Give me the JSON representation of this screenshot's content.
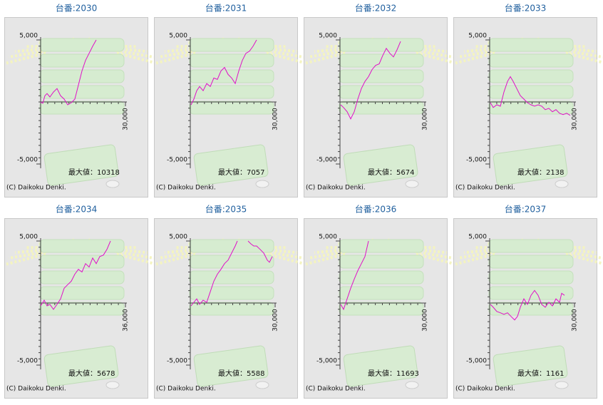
{
  "chart_data": [
    {
      "type": "line",
      "title": "台番:2030",
      "color": "#e010c8",
      "xlim": [
        0,
        30000
      ],
      "ylim": [
        -5000,
        5000
      ],
      "xticks": [
        {
          "value": 30000,
          "label": "30,000"
        }
      ],
      "yticks": [
        {
          "value": -5000,
          "label": "-5,000"
        },
        {
          "value": 5000,
          "label": "5,000"
        }
      ],
      "x": [
        0,
        756,
        1512,
        2268,
        3276,
        4536,
        5796,
        7056,
        8316,
        9576,
        10836,
        12096,
        13356,
        14616,
        15876,
        17136,
        18396,
        19656
      ],
      "values": [
        0,
        -110,
        500,
        680,
        400,
        800,
        1080,
        500,
        230,
        -230,
        -60,
        230,
        1360,
        2500,
        3350,
        3920,
        4490,
        5000
      ],
      "annotation": "最大値：10318",
      "footer": "(C) Daikoku Denki."
    },
    {
      "type": "line",
      "title": "台番:2031",
      "color": "#e010c8",
      "xlim": [
        0,
        30000
      ],
      "ylim": [
        -5000,
        5000
      ],
      "xticks": [
        {
          "value": 30000,
          "label": "30,000"
        }
      ],
      "yticks": [
        {
          "value": -5000,
          "label": "-5,000"
        },
        {
          "value": 5000,
          "label": "5,000"
        }
      ],
      "x": [
        252,
        1260,
        2268,
        3276,
        4536,
        5796,
        7056,
        8316,
        9576,
        10836,
        12096,
        13356,
        14616,
        15876,
        17136,
        18396,
        19656,
        20916,
        22176,
        23436
      ],
      "values": [
        -230,
        230,
        910,
        1250,
        910,
        1480,
        1250,
        1930,
        1820,
        2500,
        2780,
        2220,
        1930,
        1480,
        2500,
        3350,
        3920,
        4090,
        4490,
        5000
      ],
      "annotation": "最大値：7057",
      "footer": "(C) Daikoku Denki."
    },
    {
      "type": "line",
      "title": "台番:2032",
      "color": "#e010c8",
      "xlim": [
        0,
        30000
      ],
      "ylim": [
        -5000,
        5000
      ],
      "xticks": [
        {
          "value": 30000,
          "label": "30,000"
        }
      ],
      "yticks": [
        {
          "value": -5000,
          "label": "-5,000"
        },
        {
          "value": 5000,
          "label": "5,000"
        }
      ],
      "x": [
        252,
        1260,
        2520,
        3780,
        5040,
        6300,
        7560,
        8820,
        10080,
        11340,
        12600,
        13860,
        15120,
        16380,
        17640,
        18900,
        20160,
        21420
      ],
      "values": [
        -230,
        -450,
        -790,
        -1360,
        -790,
        230,
        1080,
        1650,
        2040,
        2610,
        2950,
        3070,
        3750,
        4320,
        3920,
        3630,
        4200,
        4880
      ],
      "annotation": "最大値：5674",
      "footer": "(C) Daikoku Denki."
    },
    {
      "type": "line",
      "title": "台番:2033",
      "color": "#e010c8",
      "xlim": [
        0,
        30000
      ],
      "ylim": [
        -5000,
        5000
      ],
      "xticks": [
        {
          "value": 30000,
          "label": "30,000"
        }
      ],
      "yticks": [
        {
          "value": -5000,
          "label": "-5,000"
        },
        {
          "value": 5000,
          "label": "5,000"
        }
      ],
      "x": [
        252,
        1260,
        2520,
        3780,
        5040,
        6300,
        7308,
        8316,
        9576,
        10836,
        12096,
        13356,
        14616,
        15876,
        17136,
        18396,
        19656,
        20916,
        22176,
        23436,
        24696,
        25956,
        27216,
        28476
      ],
      "values": [
        -60,
        -450,
        -230,
        -340,
        800,
        1650,
        2040,
        1650,
        1080,
        510,
        230,
        -60,
        -230,
        -340,
        -230,
        -340,
        -620,
        -510,
        -790,
        -620,
        -910,
        -1020,
        -910,
        -1080
      ],
      "annotation": "最大値：2138",
      "footer": "(C) Daikoku Denki."
    },
    {
      "type": "line",
      "title": "台番:2034",
      "color": "#e010c8",
      "xlim": [
        0,
        36000
      ],
      "ylim": [
        -5000,
        5000
      ],
      "xticks": [
        {
          "value": 36000,
          "label": "36,000"
        }
      ],
      "yticks": [
        {
          "value": -5000,
          "label": "-5,000"
        },
        {
          "value": 5000,
          "label": "5,000"
        }
      ],
      "x": [
        0,
        1510,
        2720,
        3930,
        5450,
        6960,
        8470,
        9980,
        11500,
        13010,
        14520,
        16030,
        17550,
        19060,
        20570,
        22080,
        23600,
        25110,
        26620,
        28130,
        29650
      ],
      "values": [
        -230,
        230,
        -230,
        -110,
        -510,
        -110,
        340,
        1190,
        1480,
        1760,
        2330,
        2720,
        2500,
        3180,
        2900,
        3630,
        3180,
        3750,
        3860,
        4320,
        5000
      ],
      "annotation": "最大値：5678",
      "footer": "(C) Daikoku Denki."
    },
    {
      "type": "line",
      "title": "台番:2035",
      "color": "#e010c8",
      "xlim": [
        0,
        30000
      ],
      "ylim": [
        -5000,
        5000
      ],
      "xticks": [
        {
          "value": 30000,
          "label": "30,000"
        }
      ],
      "yticks": [
        {
          "value": -5000,
          "label": "-5,000"
        },
        {
          "value": 5000,
          "label": "5,000"
        }
      ],
      "x": [
        252,
        1260,
        2268,
        3276,
        4536,
        5796,
        7056,
        8316,
        9576,
        10836,
        12096,
        13356,
        14616,
        15876,
        16632,
        18396,
        20412,
        21420,
        22428,
        23436,
        24696,
        25956,
        27216,
        27972,
        28980
      ],
      "values": [
        -230,
        60,
        340,
        -110,
        230,
        60,
        910,
        1760,
        2330,
        2720,
        3180,
        3460,
        4030,
        4600,
        5000,
        null,
        5000,
        4770,
        4600,
        4600,
        4320,
        4030,
        3460,
        3290,
        3750
      ],
      "annotation": "最大値：5588",
      "footer": "(C) Daikoku Denki."
    },
    {
      "type": "line",
      "title": "台番:2036",
      "color": "#e010c8",
      "xlim": [
        0,
        30000
      ],
      "ylim": [
        -5000,
        5000
      ],
      "xticks": [
        {
          "value": 30000,
          "label": "30,000"
        }
      ],
      "yticks": [
        {
          "value": -5000,
          "label": "-5,000"
        },
        {
          "value": 5000,
          "label": "5,000"
        }
      ],
      "x": [
        252,
        1260,
        2520,
        3780,
        5040,
        6300,
        7560,
        8820,
        10080
      ],
      "values": [
        -110,
        -510,
        340,
        1190,
        1930,
        2610,
        3180,
        3750,
        5000
      ],
      "annotation": "最大値：11693",
      "footer": "(C) Daikoku Denki."
    },
    {
      "type": "line",
      "title": "台番:2037",
      "color": "#e010c8",
      "xlim": [
        0,
        30000
      ],
      "ylim": [
        -5000,
        5000
      ],
      "xticks": [
        {
          "value": 30000,
          "label": "30,000"
        }
      ],
      "yticks": [
        {
          "value": -5000,
          "label": "-5,000"
        },
        {
          "value": 5000,
          "label": "5,000"
        }
      ],
      "x": [
        252,
        1260,
        2520,
        3780,
        5040,
        6300,
        7560,
        8820,
        9828,
        10836,
        12096,
        13356,
        14616,
        15876,
        17136,
        18396,
        19656,
        20916,
        22176,
        23436,
        24696,
        25452,
        26460
      ],
      "values": [
        -110,
        -340,
        -680,
        -790,
        -910,
        -790,
        -1080,
        -1360,
        -1080,
        -340,
        340,
        -110,
        620,
        1020,
        620,
        -110,
        -340,
        60,
        -230,
        340,
        60,
        790,
        620
      ],
      "annotation": "最大値：1161",
      "footer": "(C) Daikoku Denki."
    }
  ]
}
